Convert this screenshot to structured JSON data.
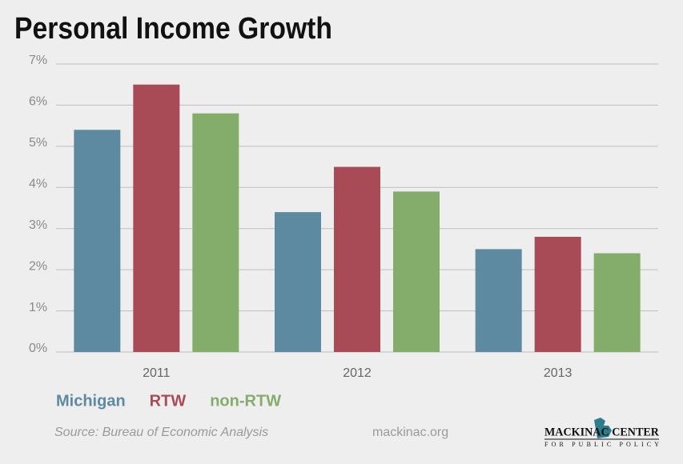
{
  "chart_data": {
    "type": "bar",
    "title": "Personal Income Growth",
    "categories": [
      "2011",
      "2012",
      "2013"
    ],
    "series": [
      {
        "name": "Michigan",
        "color": "#5d8aa0",
        "values": [
          5.4,
          3.4,
          2.5
        ]
      },
      {
        "name": "RTW",
        "color": "#a94b57",
        "values": [
          6.5,
          4.5,
          2.8
        ]
      },
      {
        "name": "non-RTW",
        "color": "#84ad6b",
        "values": [
          5.8,
          3.9,
          2.4
        ]
      }
    ],
    "ylim": [
      0,
      7
    ],
    "yticks": [
      {
        "value": 0,
        "label": "0%"
      },
      {
        "value": 1,
        "label": "1%"
      },
      {
        "value": 2,
        "label": "2%"
      },
      {
        "value": 3,
        "label": "3%"
      },
      {
        "value": 4,
        "label": "4%"
      },
      {
        "value": 5,
        "label": "5%"
      },
      {
        "value": 6,
        "label": "6%"
      },
      {
        "value": 7,
        "label": "7%"
      }
    ],
    "grid": true,
    "source": "Source: Bureau of Economic Analysis",
    "website": "mackinac.org",
    "logo": {
      "name": "MACKINAC CENTER",
      "tagline": "FOR PUBLIC POLICY"
    }
  }
}
